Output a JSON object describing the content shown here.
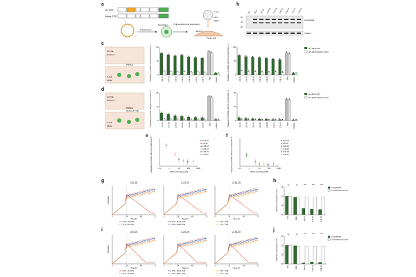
{
  "panel_labels": [
    "a",
    "b",
    "c",
    "d",
    "e",
    "f",
    "g",
    "h",
    "i",
    "j"
  ],
  "panel_a": {
    "constructs": [
      {
        "name": "Ai-TCE",
        "parts": [
          "VH",
          "V-kappa",
          "linker",
          "VH",
          "VL",
          "6xHis"
        ]
      },
      {
        "name": "Mock-TCE",
        "parts": [
          "VH",
          "VL",
          "linker",
          "VH",
          "VL",
          "6xHis"
        ]
      }
    ],
    "steps": [
      "Transfection",
      "Neuroblast",
      "TCE secretion and expression",
      "T cell",
      "Tumor cell"
    ],
    "labels": [
      "CD3",
      "CD28",
      "Nectin-4"
    ]
  },
  "panel_b": {
    "lanes": [
      "WT",
      "Mock",
      "3-8-16",
      "3-24-20",
      "2-28-16",
      "2-40-22",
      "2-36-20",
      "2-31-11",
      "2-28-14"
    ],
    "bands": [
      "2A peptide",
      "mNeon"
    ],
    "markers": [
      "55",
      "35",
      "25"
    ]
  },
  "panel_c": {
    "schematic": [
      "Ai-TCE",
      "Nectin-4",
      "PBMCs",
      "T cell",
      "CD3e"
    ],
    "left_ylabel": "Frequency of CD25+ cells (% of total CD3+ T cells)",
    "right_ylabel": "Frequency of CD69+ cells (% of total CD3+ T cells)",
    "legend": [
      "HT-1376 WT",
      "HT-1376 Nectin-4 KO"
    ],
    "categories": [
      "3-8-16",
      "3-24-20",
      "2-28-16",
      "2-40-22",
      "2-36-20",
      "2-31-11",
      "2-28-14",
      "Mock",
      "Untrans."
    ],
    "series": [
      {
        "name": "HT-1376 WT",
        "values": [
          62,
          58,
          55,
          57,
          52,
          50,
          48,
          68,
          5
        ]
      },
      {
        "name": "HT-1376 Nectin-4 KO",
        "values": [
          10,
          9,
          8,
          9,
          7,
          8,
          6,
          64,
          4
        ]
      }
    ],
    "series_right": [
      {
        "name": "HT-1376 WT",
        "values": [
          70,
          66,
          64,
          62,
          60,
          57,
          55,
          80,
          6
        ]
      },
      {
        "name": "HT-1376 Nectin-4 KO",
        "values": [
          14,
          12,
          11,
          10,
          9,
          10,
          8,
          76,
          5
        ]
      }
    ]
  },
  "panel_d": {
    "schematic": [
      "Ai-TCE",
      "Nectin-4",
      "PBMCs",
      "Nectin-4 TCE",
      "T cell",
      "CD3e"
    ],
    "left_ylabel": "Frequency of CD25+ cells (% of total CD3+ T cells)",
    "right_ylabel": "Frequency of CD69+ cells (% of total CD3+ T cells)",
    "legend": [
      "HT-1376 WT",
      "HT-1376 Nectin-4 KO"
    ],
    "categories": [
      "3-8-16",
      "3-24-20",
      "2-28-16",
      "2-40-22",
      "2-36-20",
      "2-31-11",
      "2-28-14",
      "Mock",
      "Untrans."
    ],
    "series": [
      {
        "name": "HT-1376 WT",
        "values": [
          22,
          18,
          14,
          12,
          10,
          9,
          8,
          70,
          3
        ]
      },
      {
        "name": "HT-1376 Nectin-4 KO",
        "values": [
          4,
          3,
          3,
          2,
          2,
          2,
          2,
          68,
          2
        ]
      }
    ],
    "series_right": [
      {
        "name": "HT-1376 WT",
        "values": [
          8,
          6,
          5,
          4,
          4,
          3,
          3,
          62,
          2
        ]
      },
      {
        "name": "HT-1376 Nectin-4 KO",
        "values": [
          2,
          2,
          2,
          1,
          1,
          1,
          1,
          60,
          1
        ]
      }
    ]
  },
  "panel_e": {
    "ylabel": "Frequency of CD25+ cells (% of total CD3+ T cells)",
    "xlabel": "KD(3-1) binding [nM]",
    "xticks": [
      "0.1",
      "1",
      "10",
      "100",
      "1000"
    ],
    "legend": [
      "3-24-20",
      "3-8-16",
      "2-28-16",
      "2-40-22",
      "2-36-20",
      "2-31-11"
    ]
  },
  "panel_f": {
    "ylabel": "Frequency of CD69+ cells (% of total CD3+ T cells)",
    "xlabel": "KD(3-1) binding [nM]",
    "xticks": [
      "0.1",
      "1",
      "10",
      "100",
      "1000"
    ],
    "legend": [
      "3-24-20",
      "3-8-16",
      "2-28-16",
      "2-40-22",
      "2-36-20",
      "2-31-11"
    ]
  },
  "panel_g": {
    "titles": [
      "3-8-16",
      "3-24-20",
      "2-36-20"
    ],
    "ylabel": "Cell Index",
    "xlabel": "Time (h)",
    "xticks": [
      "0",
      "24",
      "48",
      "72"
    ],
    "legend": [
      "WT + Ai-TCE",
      "KO + Ai-TCE",
      "WT + Mock-TCE",
      "KO + Mock-TCE",
      "WT - TCE",
      "KO - TCE"
    ]
  },
  "panel_h": {
    "ylabel": "Cell Index normalized to Ctrl",
    "categories": [
      "Ctrl",
      "Mock",
      "3-8-16",
      "3-24-20",
      "2-36-20"
    ],
    "legend": [
      "HT-1376 WT",
      "HT-1376 Nectin-4 KO"
    ],
    "series": [
      {
        "name": "HT-1376 WT",
        "values": [
          1.0,
          0.95,
          0.35,
          0.3,
          0.28
        ]
      },
      {
        "name": "HT-1376 Nectin-4 KO",
        "values": [
          1.0,
          0.97,
          0.96,
          0.95,
          0.97
        ]
      }
    ],
    "sig": [
      "ns",
      "ns",
      "****",
      "****",
      "****"
    ]
  },
  "panel_i": {
    "titles": [
      "3-8-16",
      "3-24-20",
      "2-36-20"
    ],
    "ylabel": "Cell Index",
    "xlabel": "Time (h)",
    "xticks": [
      "0",
      "24",
      "48",
      "72"
    ],
    "legend": [
      "WT + Ai-TCE",
      "KO + Ai-TCE",
      "WT + Mock-TCE",
      "KO + Mock-TCE",
      "WT - TCE",
      "KO - TCE"
    ]
  },
  "panel_j": {
    "ylabel": "Cell Index normalized to Ctrl",
    "categories": [
      "Ctrl",
      "Mock",
      "3-8-16",
      "3-24-20",
      "2-36-20"
    ],
    "legend": [
      "HT-1376 WT",
      "HT-1376 Nectin-4 KO"
    ],
    "series": [
      {
        "name": "HT-1376 WT",
        "values": [
          1.0,
          0.98,
          0.05,
          0.1,
          0.08
        ]
      },
      {
        "name": "HT-1376 Nectin-4 KO",
        "values": [
          1.0,
          0.96,
          0.95,
          0.97,
          0.96
        ]
      }
    ],
    "sig": [
      "ns",
      "ns",
      "****",
      "****",
      "****"
    ]
  },
  "colors": {
    "wt_green": "#2e6b2e",
    "ko_white": "#ffffff",
    "mock_grey": "#bdbdbd",
    "line_red": "#e4644b",
    "line_blue": "#3d5aa8",
    "line_orange": "#f0a04b",
    "green_box": "#4caf50"
  }
}
